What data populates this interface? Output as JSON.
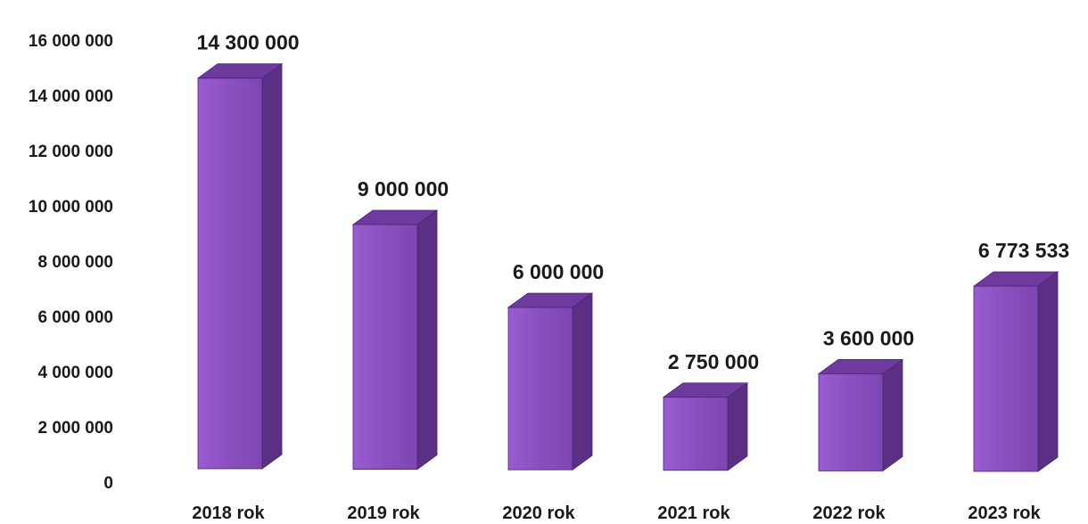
{
  "chart_data": {
    "type": "bar",
    "title": "",
    "xlabel": "",
    "ylabel": "",
    "ylim": [
      0,
      16000000
    ],
    "grid": false,
    "legend": "none",
    "y_ticks": [
      "0",
      "2 000 000",
      "4 000 000",
      "6 000 000",
      "8 000 000",
      "10 000 000",
      "12 000 000",
      "14 000 000",
      "16 000 000"
    ],
    "categories": [
      "2018 rok",
      "2019 rok",
      "2020 rok",
      "2021 rok",
      "2022 rok",
      "2023 rok"
    ],
    "values": [
      14300000,
      9000000,
      6000000,
      2750000,
      3600000,
      6773533
    ],
    "data_labels": [
      "14 300 000",
      "9 000 000",
      "6 000 000",
      "2 750 000",
      "3 600 000",
      "6 773 533"
    ],
    "colors": {
      "front": "#8a4fbf",
      "top": "#6f3a9e",
      "side": "#5b2f83",
      "edge": "#4a2470"
    }
  }
}
